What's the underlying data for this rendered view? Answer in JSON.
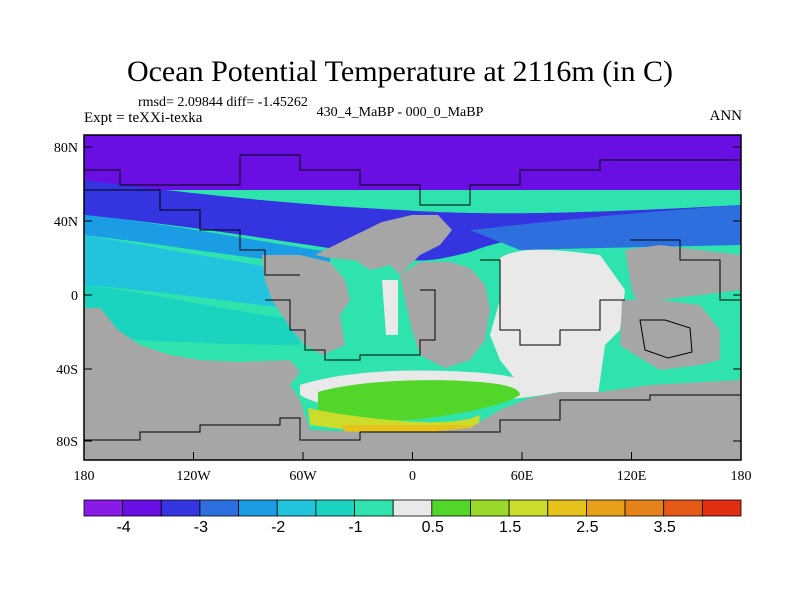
{
  "title": "Ocean Potential Temperature at 2116m (in C)",
  "stats": "rmsd= 2.09844 diff= -1.45262",
  "expt_label": "Expt = teXXi-texka",
  "comparison_label": "430_4_MaBP - 000_0_MaBP",
  "season_label": "ANN",
  "lat_ticks": [
    "80N",
    "40N",
    "0",
    "40S",
    "80S"
  ],
  "lon_ticks": [
    "180",
    "120W",
    "60W",
    "0",
    "60E",
    "120E",
    "180"
  ],
  "colorbar": {
    "colors": [
      "#8a1be6",
      "#6a0fe3",
      "#3434e0",
      "#2e6fe0",
      "#1b9de6",
      "#22c3dc",
      "#1ad4c0",
      "#2ee3ad",
      "#e9e9e9",
      "#52d62a",
      "#9ad82a",
      "#cbdc2a",
      "#e7c21a",
      "#e6a01a",
      "#e6821a",
      "#e65a18",
      "#e22f14"
    ],
    "labels": [
      "-4",
      "-3",
      "-2",
      "-1",
      "0.5",
      "1.5",
      "2.5",
      "3.5"
    ]
  },
  "colors": {
    "land": "#a6a6a6",
    "neutral": "#e9e9e9",
    "coast": "#000000"
  }
}
